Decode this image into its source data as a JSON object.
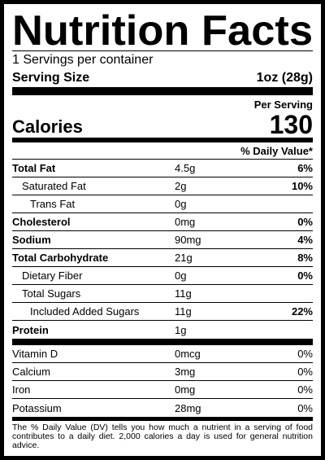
{
  "title": "Nutrition Facts",
  "servings": "1 Servings per container",
  "serving_size": {
    "label": "Serving Size",
    "value": "1oz (28g)"
  },
  "per_serving": "Per Serving",
  "calories": {
    "label": "Calories",
    "value": 130
  },
  "daily_value_header": "% Daily Value*",
  "nutrients": [
    {
      "name": "Total Fat",
      "amount": "4.5g",
      "dv": "6%"
    },
    {
      "name": "Saturated Fat",
      "amount": "2g",
      "dv": "10%"
    },
    {
      "name": "Trans Fat",
      "amount": "0g"
    },
    {
      "name": "Cholesterol",
      "amount": "0mg",
      "dv": "0%"
    },
    {
      "name": "Sodium",
      "amount": "90mg",
      "dv": "4%"
    },
    {
      "name": "Total Carbohydrate",
      "amount": "21g",
      "dv": "8%"
    },
    {
      "name": "Dietary Fiber",
      "amount": "0g",
      "dv": "0%"
    },
    {
      "name": "Total Sugars",
      "amount": "11g"
    },
    {
      "name": "Included Added Sugars",
      "amount": "11g",
      "dv": "22%"
    },
    {
      "name": "Protein",
      "amount": "1g"
    }
  ],
  "vitamins": [
    {
      "name": "Vitamin D",
      "amount": "0mcg",
      "dv": "0%"
    },
    {
      "name": "Calcium",
      "amount": "3mg",
      "dv": "0%"
    },
    {
      "name": "Iron",
      "amount": "0mg",
      "dv": "0%"
    },
    {
      "name": "Potassium",
      "amount": "28mg",
      "dv": "0%"
    }
  ],
  "footnote": "The % Daily Value (DV) tells you how much a nutrient in a serving of food contributes to a daily diet. 2,000 calories a day is used for general nutrition advice."
}
